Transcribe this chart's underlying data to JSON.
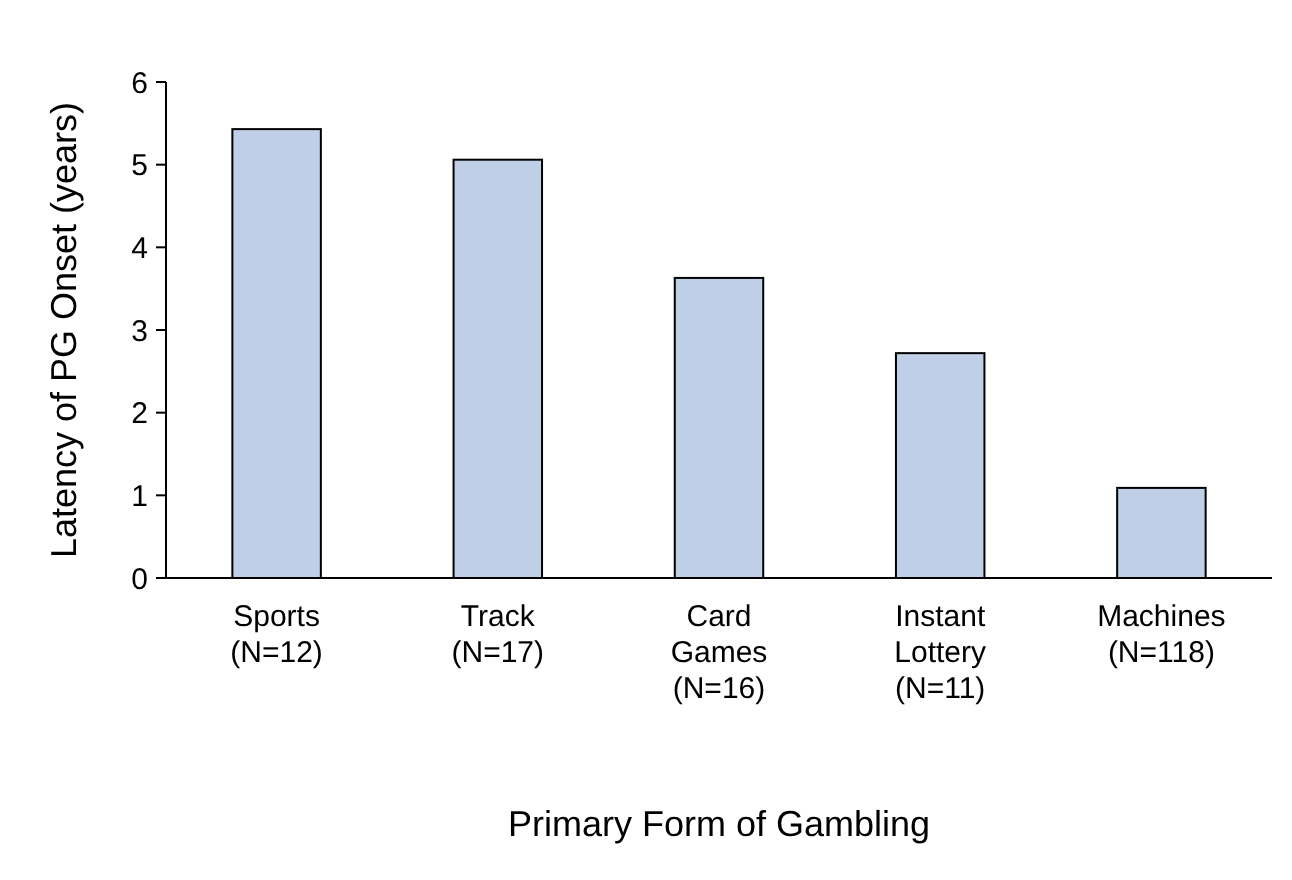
{
  "chart_data": {
    "type": "bar",
    "xlabel": "Primary Form of Gambling",
    "ylabel": "Latency of PG Onset (years)",
    "categories": [
      "Sports (N=12)",
      "Track (N=17)",
      "Card Games (N=16)",
      "Instant Lottery (N=11)",
      "Machines (N=118)"
    ],
    "values": [
      5.43,
      5.06,
      3.63,
      2.72,
      1.09
    ],
    "color": "#c0cfe8",
    "ylim": [
      0,
      6
    ],
    "yticks": [
      0,
      1,
      2,
      3,
      4,
      5,
      6
    ],
    "grid": false
  }
}
